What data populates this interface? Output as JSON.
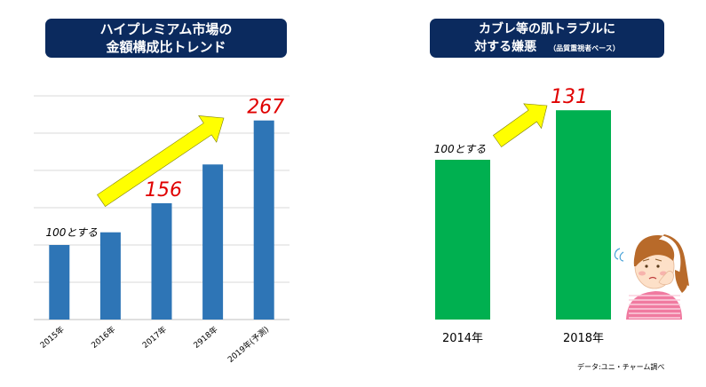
{
  "chart_data": [
    {
      "type": "bar",
      "title_line1": "ハイプレミアム市場の",
      "title_line2": "金額構成比トレンド",
      "categories": [
        "2015年",
        "2016年",
        "2017年",
        "2918年",
        "2019年(予測)"
      ],
      "values": [
        100,
        117,
        156,
        208,
        267
      ],
      "annotations": [
        {
          "index": 0,
          "text": "100とする"
        },
        {
          "index": 2,
          "text": "156"
        },
        {
          "index": 4,
          "text": "267"
        }
      ],
      "ylim": [
        0,
        300
      ],
      "grid": true,
      "bar_color": "#2e75b6",
      "annotation_color": "#e00000"
    },
    {
      "type": "bar",
      "title_line1": "カブレ等の肌トラブルに",
      "title_line2": "対する嫌悪",
      "title_sub": "（品質重視者ベース）",
      "categories": [
        "2014年",
        "2018年"
      ],
      "values": [
        100,
        131
      ],
      "annotations": [
        {
          "index": 0,
          "text": "100とする"
        },
        {
          "index": 1,
          "text": "131"
        }
      ],
      "ylim": [
        0,
        140
      ],
      "grid": false,
      "bar_color": "#00b050",
      "annotation_color": "#e00000"
    }
  ],
  "source": "データ:ユニ・チャーム調べ",
  "arrow_color": "#ffff00"
}
